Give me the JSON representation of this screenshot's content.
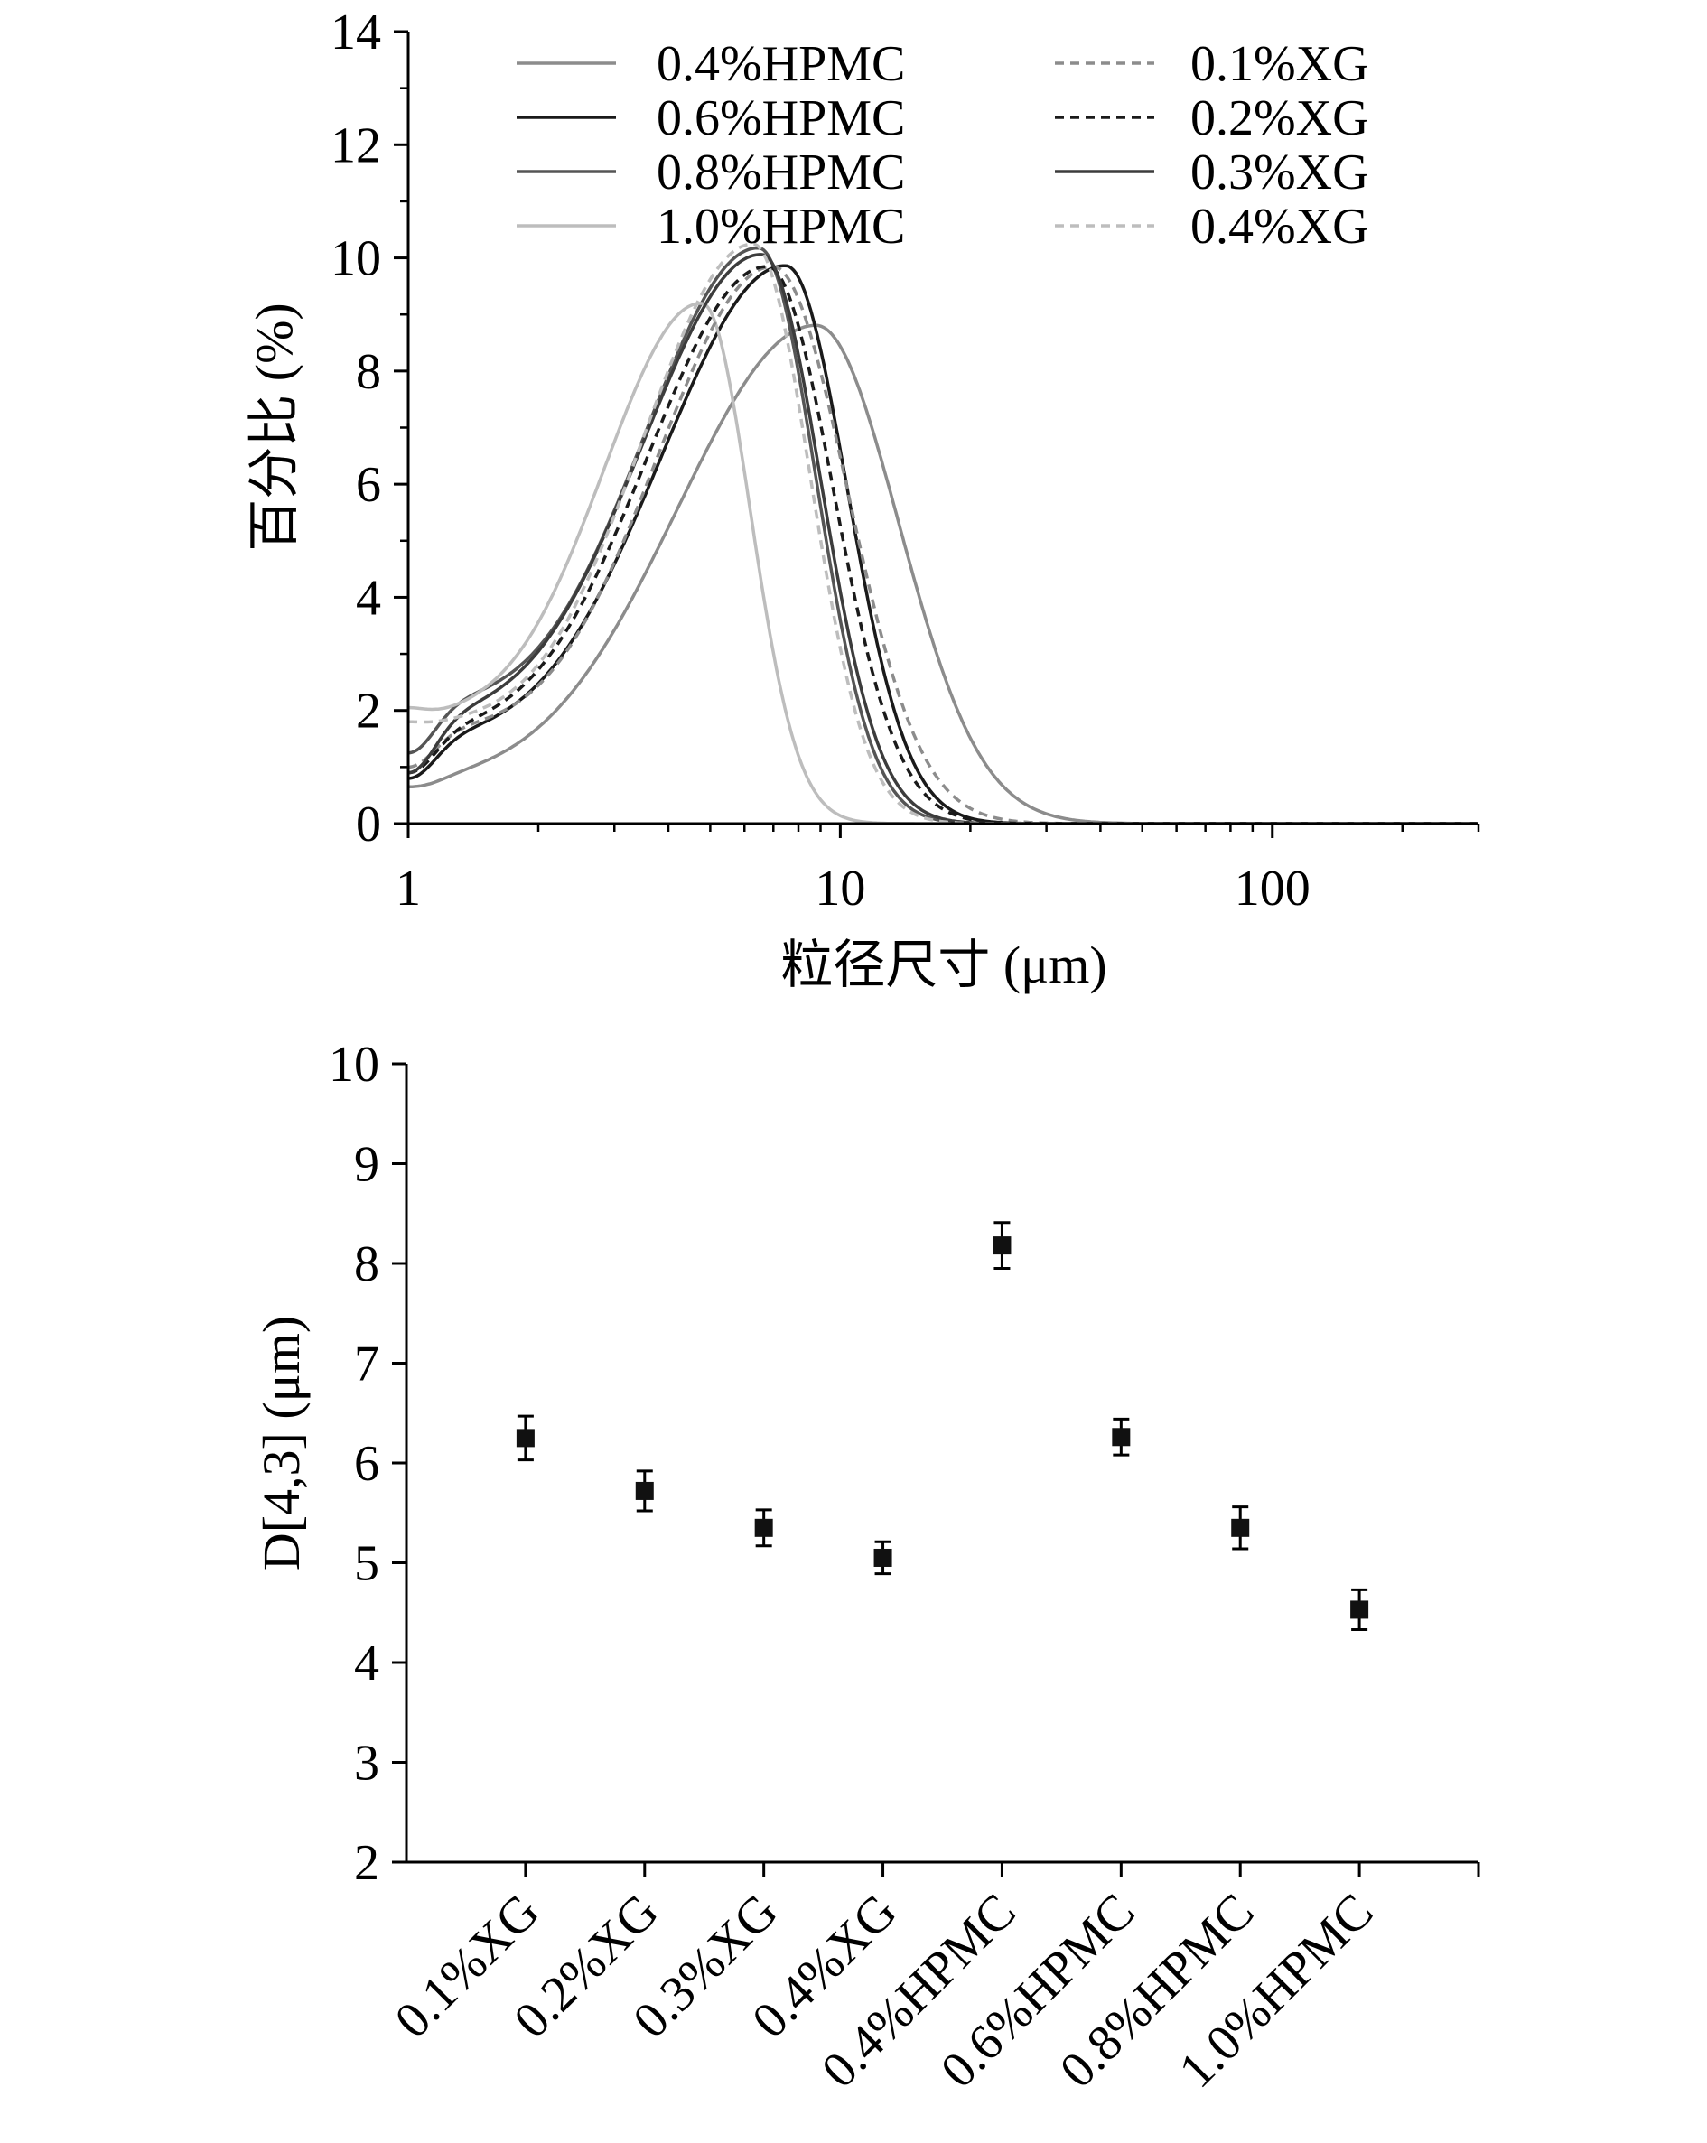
{
  "chart_data": [
    {
      "type": "line",
      "title": "",
      "xlabel": "粒径尺寸 (μm)",
      "ylabel": "百分比 (%)",
      "xscale": "log",
      "xlim": [
        1,
        300
      ],
      "ylim": [
        0,
        14
      ],
      "xticks": [
        1,
        10,
        100
      ],
      "xtick_labels": [
        "1",
        "10",
        "100"
      ],
      "yticks": [
        0,
        2,
        4,
        6,
        8,
        10,
        12,
        14
      ],
      "ytick_labels": [
        "0",
        "2",
        "4",
        "6",
        "8",
        "10",
        "12",
        "14"
      ],
      "legend_position": "top",
      "grid": false,
      "series": [
        {
          "name": "0.4%HPMC",
          "color": "#8c8c8c",
          "dash": false,
          "peak_x": 8.8,
          "peak_y": 8.8,
          "sigma_left": 0.33,
          "sigma_right": 0.19,
          "tail": 0.6,
          "tail_width": 0.45,
          "x1_value": 0.65
        },
        {
          "name": "0.6%HPMC",
          "color": "#1a1a1a",
          "dash": false,
          "peak_x": 7.5,
          "peak_y": 9.8,
          "sigma_left": 0.3,
          "sigma_right": 0.14,
          "tail": 1.3,
          "tail_width": 0.5,
          "x1_value": 0.8
        },
        {
          "name": "0.8%HPMC",
          "color": "#555555",
          "dash": false,
          "peak_x": 6.5,
          "peak_y": 10.1,
          "sigma_left": 0.28,
          "sigma_right": 0.13,
          "tail": 1.9,
          "tail_width": 0.45,
          "x1_value": 1.25
        },
        {
          "name": "1.0%HPMC",
          "color": "#bdbdbd",
          "dash": false,
          "peak_x": 4.8,
          "peak_y": 9.1,
          "sigma_left": 0.24,
          "sigma_right": 0.11,
          "tail": 1.7,
          "tail_width": 0.4,
          "x1_value": 2.05
        },
        {
          "name": "0.1%XG",
          "color": "#8c8c8c",
          "dash": true,
          "peak_x": 7.0,
          "peak_y": 9.8,
          "sigma_left": 0.28,
          "sigma_right": 0.17,
          "tail": 1.5,
          "tail_width": 0.45,
          "x1_value": 1.0
        },
        {
          "name": "0.2%XG",
          "color": "#1a1a1a",
          "dash": true,
          "peak_x": 6.8,
          "peak_y": 9.8,
          "sigma_left": 0.29,
          "sigma_right": 0.15,
          "tail": 1.4,
          "tail_width": 0.45,
          "x1_value": 0.9
        },
        {
          "name": "0.3%XG",
          "color": "#3c3c3c",
          "dash": false,
          "peak_x": 6.6,
          "peak_y": 10.0,
          "sigma_left": 0.29,
          "sigma_right": 0.135,
          "tail": 1.6,
          "tail_width": 0.45,
          "x1_value": 0.9
        },
        {
          "name": "0.4%XG",
          "color": "#bdbdbd",
          "dash": true,
          "peak_x": 6.3,
          "peak_y": 10.2,
          "sigma_left": 0.27,
          "sigma_right": 0.13,
          "tail": 1.6,
          "tail_width": 0.42,
          "x1_value": 1.8
        }
      ]
    },
    {
      "type": "scatter",
      "title": "",
      "xlabel": "",
      "ylabel": "D[4,3] (μm)",
      "ylim": [
        2,
        10
      ],
      "yticks": [
        2,
        3,
        4,
        5,
        6,
        7,
        8,
        9,
        10
      ],
      "ytick_labels": [
        "2",
        "3",
        "4",
        "5",
        "6",
        "7",
        "8",
        "9",
        "10"
      ],
      "grid": false,
      "categories": [
        "0.1%XG",
        "0.2%XG",
        "0.3%XG",
        "0.4%XG",
        "0.4%HPMC",
        "0.6%HPMC",
        "0.8%HPMC",
        "1.0%HPMC"
      ],
      "values": [
        6.25,
        5.72,
        5.35,
        5.05,
        8.18,
        6.26,
        5.35,
        4.53
      ],
      "errors": [
        0.22,
        0.2,
        0.18,
        0.16,
        0.23,
        0.18,
        0.21,
        0.2
      ]
    }
  ]
}
